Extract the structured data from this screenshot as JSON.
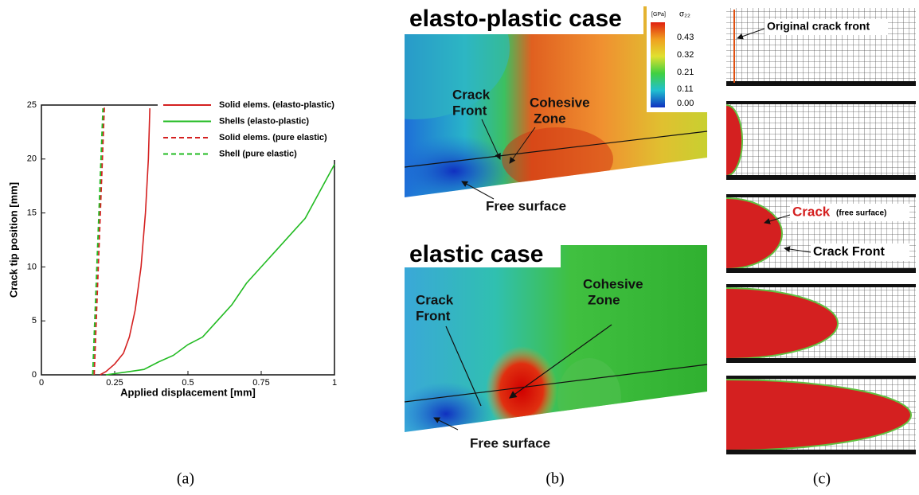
{
  "chart_data": {
    "type": "line",
    "xlabel": "Applied displacement [mm]",
    "ylabel": "Crack tip position [mm]",
    "xlim": [
      0,
      1
    ],
    "ylim": [
      0,
      25
    ],
    "xticks": [
      0,
      0.25,
      0.5,
      0.75,
      1
    ],
    "yticks": [
      0,
      5,
      10,
      15,
      20,
      25
    ],
    "series": [
      {
        "name": "Solid elems. (elasto-plastic)",
        "color": "#d42020",
        "dash": false,
        "x": [
          0.2,
          0.22,
          0.25,
          0.28,
          0.3,
          0.32,
          0.34,
          0.355,
          0.365,
          0.37
        ],
        "values": [
          0,
          0.3,
          1,
          2,
          3.5,
          6,
          10,
          15,
          20,
          24.7
        ]
      },
      {
        "name": "Shells  (elasto-plastic)",
        "color": "#22bb22",
        "dash": false,
        "x": [
          0.22,
          0.3,
          0.35,
          0.4,
          0.45,
          0.5,
          0.55,
          0.6,
          0.65,
          0.7,
          0.75,
          0.8,
          0.85,
          0.9,
          0.95,
          1
        ],
        "values": [
          0,
          0.3,
          0.5,
          1.2,
          1.8,
          2.8,
          3.5,
          5,
          6.5,
          8.5,
          10,
          11.5,
          13,
          14.5,
          17,
          19.5
        ]
      },
      {
        "name": "Solid elems. (pure elastic)",
        "color": "#d42020",
        "dash": true,
        "x": [
          0.18,
          0.215
        ],
        "values": [
          0,
          25
        ]
      },
      {
        "name": "Shell (pure elastic)",
        "color": "#22bb22",
        "dash": true,
        "x": [
          0.175,
          0.21
        ],
        "values": [
          0,
          24.7
        ]
      }
    ],
    "caption": "(a)"
  },
  "panel_b": {
    "top": {
      "title": "elasto-plastic case",
      "crack_front": [
        "Crack",
        "Front"
      ],
      "cohesive_zone": [
        "Cohesive",
        "Zone"
      ],
      "free_surface": "Free surface",
      "colorbar": {
        "unit": "[GPa]",
        "quantity": "σ₂₂",
        "labels": [
          "0.43",
          "0.32",
          "0.21",
          "0.11",
          "0.00"
        ]
      }
    },
    "bottom": {
      "title": "elastic case",
      "crack_front": [
        "Crack",
        "Front"
      ],
      "cohesive_zone": [
        "Cohesive",
        "Zone"
      ],
      "free_surface": "Free surface"
    },
    "caption": "(b)"
  },
  "panel_c": {
    "original_crack_front": "Original crack front",
    "crack": "Crack",
    "free_surface": "(free surface)",
    "crack_front": "Crack Front",
    "caption": "(c)"
  }
}
